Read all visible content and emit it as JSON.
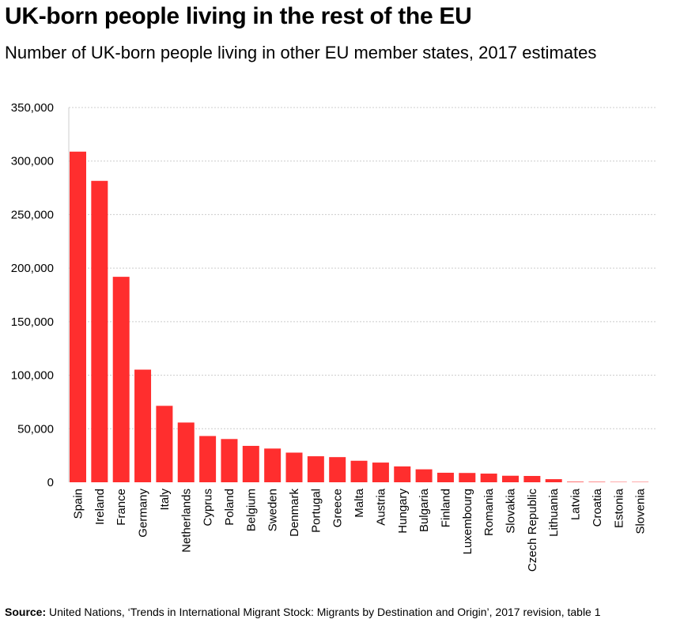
{
  "header": {
    "title": "UK-born people living in the rest of the EU",
    "subtitle": "Number of UK-born people living in other EU member states, 2017 estimates"
  },
  "footer": {
    "source_label": "Source:",
    "source_text": "United Nations, ‘Trends in International Migrant Stock: Migrants by Destination and Origin’, 2017 revision, table 1"
  },
  "colors": {
    "bar": "#ff2e2e",
    "grid": "#cccccc",
    "axis": "#999999"
  },
  "chart_data": {
    "type": "bar",
    "title": "UK-born people living in the rest of the EU",
    "subtitle": "Number of UK-born people living in other EU member states, 2017 estimates",
    "xlabel": "",
    "ylabel": "",
    "ylim": [
      0,
      350000
    ],
    "yticks": [
      0,
      50000,
      100000,
      150000,
      200000,
      250000,
      300000,
      350000
    ],
    "ytick_labels": [
      "0",
      "50,000",
      "100,000",
      "150,000",
      "200,000",
      "250,000",
      "300,000",
      "350,000"
    ],
    "grid": true,
    "legend": "none",
    "categories": [
      "Spain",
      "Ireland",
      "France",
      "Germany",
      "Italy",
      "Netherlands",
      "Cyprus",
      "Poland",
      "Belgium",
      "Sweden",
      "Denmark",
      "Portugal",
      "Greece",
      "Malta",
      "Austria",
      "Hungary",
      "Bulgaria",
      "Finland",
      "Luxembourg",
      "Romania",
      "Slovakia",
      "Czech Republic",
      "Lithuania",
      "Latvia",
      "Croatia",
      "Estonia",
      "Slovenia"
    ],
    "values": [
      308800,
      281500,
      191900,
      105200,
      71400,
      55800,
      43200,
      40400,
      34000,
      31500,
      27700,
      24300,
      23500,
      20100,
      18400,
      14800,
      12100,
      8900,
      8700,
      8100,
      6100,
      5900,
      2900,
      500,
      400,
      300,
      300
    ]
  }
}
